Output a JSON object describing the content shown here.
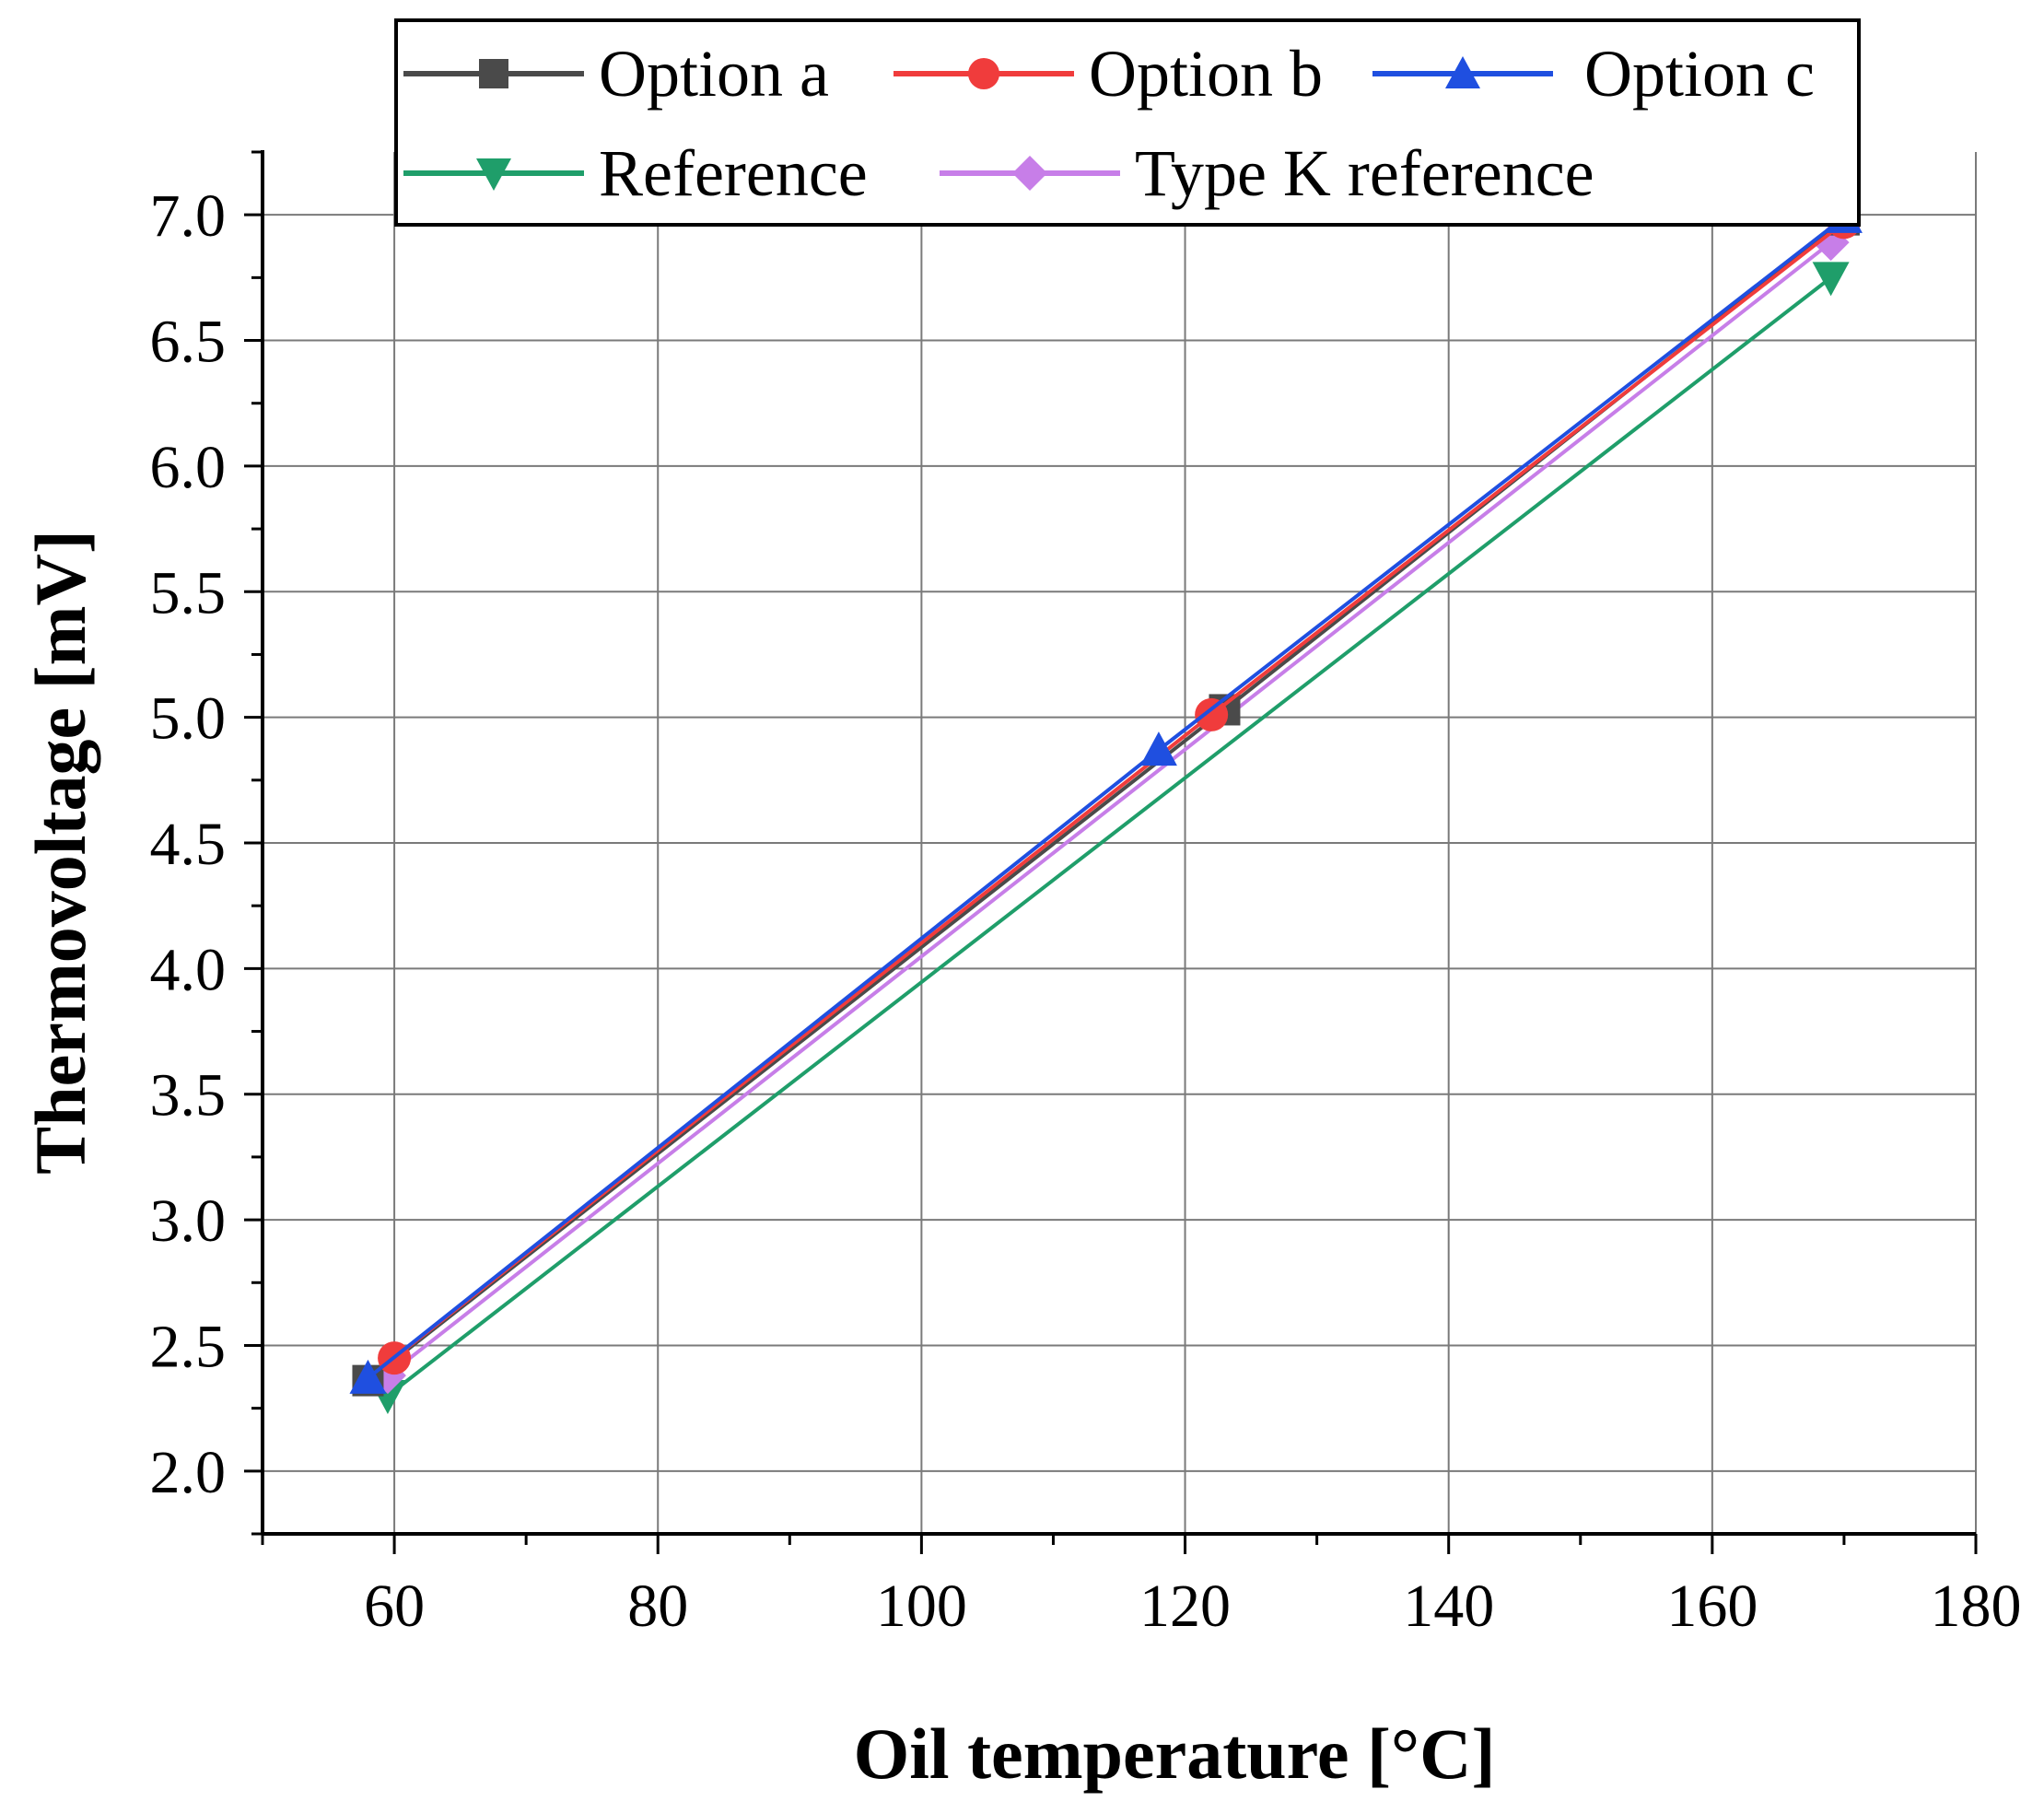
{
  "chart_data": {
    "type": "line",
    "xlabel": "Oil temperature [°C]",
    "ylabel": "Thermovoltage [mV]",
    "xlim": [
      50,
      180
    ],
    "ylim": [
      1.75,
      7.25
    ],
    "xticks": [
      60,
      80,
      100,
      120,
      140,
      160,
      180
    ],
    "xtick_labels": [
      "60",
      "80",
      "100",
      "120",
      "140",
      "160",
      "180"
    ],
    "yticks": [
      2.0,
      2.5,
      3.0,
      3.5,
      4.0,
      4.5,
      5.0,
      5.5,
      6.0,
      6.5,
      7.0
    ],
    "ytick_labels": [
      "2.0",
      "2.5",
      "3.0",
      "3.5",
      "4.0",
      "4.5",
      "5.0",
      "5.5",
      "6.0",
      "6.5",
      "7.0"
    ],
    "grid": true,
    "legend_position": "top",
    "series": [
      {
        "name": "Option a",
        "color": "#4a4a4a",
        "marker": "square",
        "x": [
          58,
          123,
          170
        ],
        "y": [
          2.36,
          5.03,
          6.98
        ]
      },
      {
        "name": "Option b",
        "color": "#f03c3c",
        "marker": "circle",
        "x": [
          60,
          122,
          170
        ],
        "y": [
          2.45,
          5.01,
          6.97
        ]
      },
      {
        "name": "Option c",
        "color": "#1f4fe0",
        "marker": "triangle-up",
        "x": [
          58,
          118,
          170
        ],
        "y": [
          2.37,
          4.87,
          6.99
        ]
      },
      {
        "name": "Reference",
        "color": "#1f9e6a",
        "marker": "triangle-down",
        "x": [
          59.5,
          169
        ],
        "y": [
          2.3,
          6.75
        ]
      },
      {
        "name": "Type K reference",
        "color": "#c77ee8",
        "marker": "diamond",
        "x": [
          59.5,
          169
        ],
        "y": [
          2.38,
          6.89
        ]
      }
    ]
  }
}
